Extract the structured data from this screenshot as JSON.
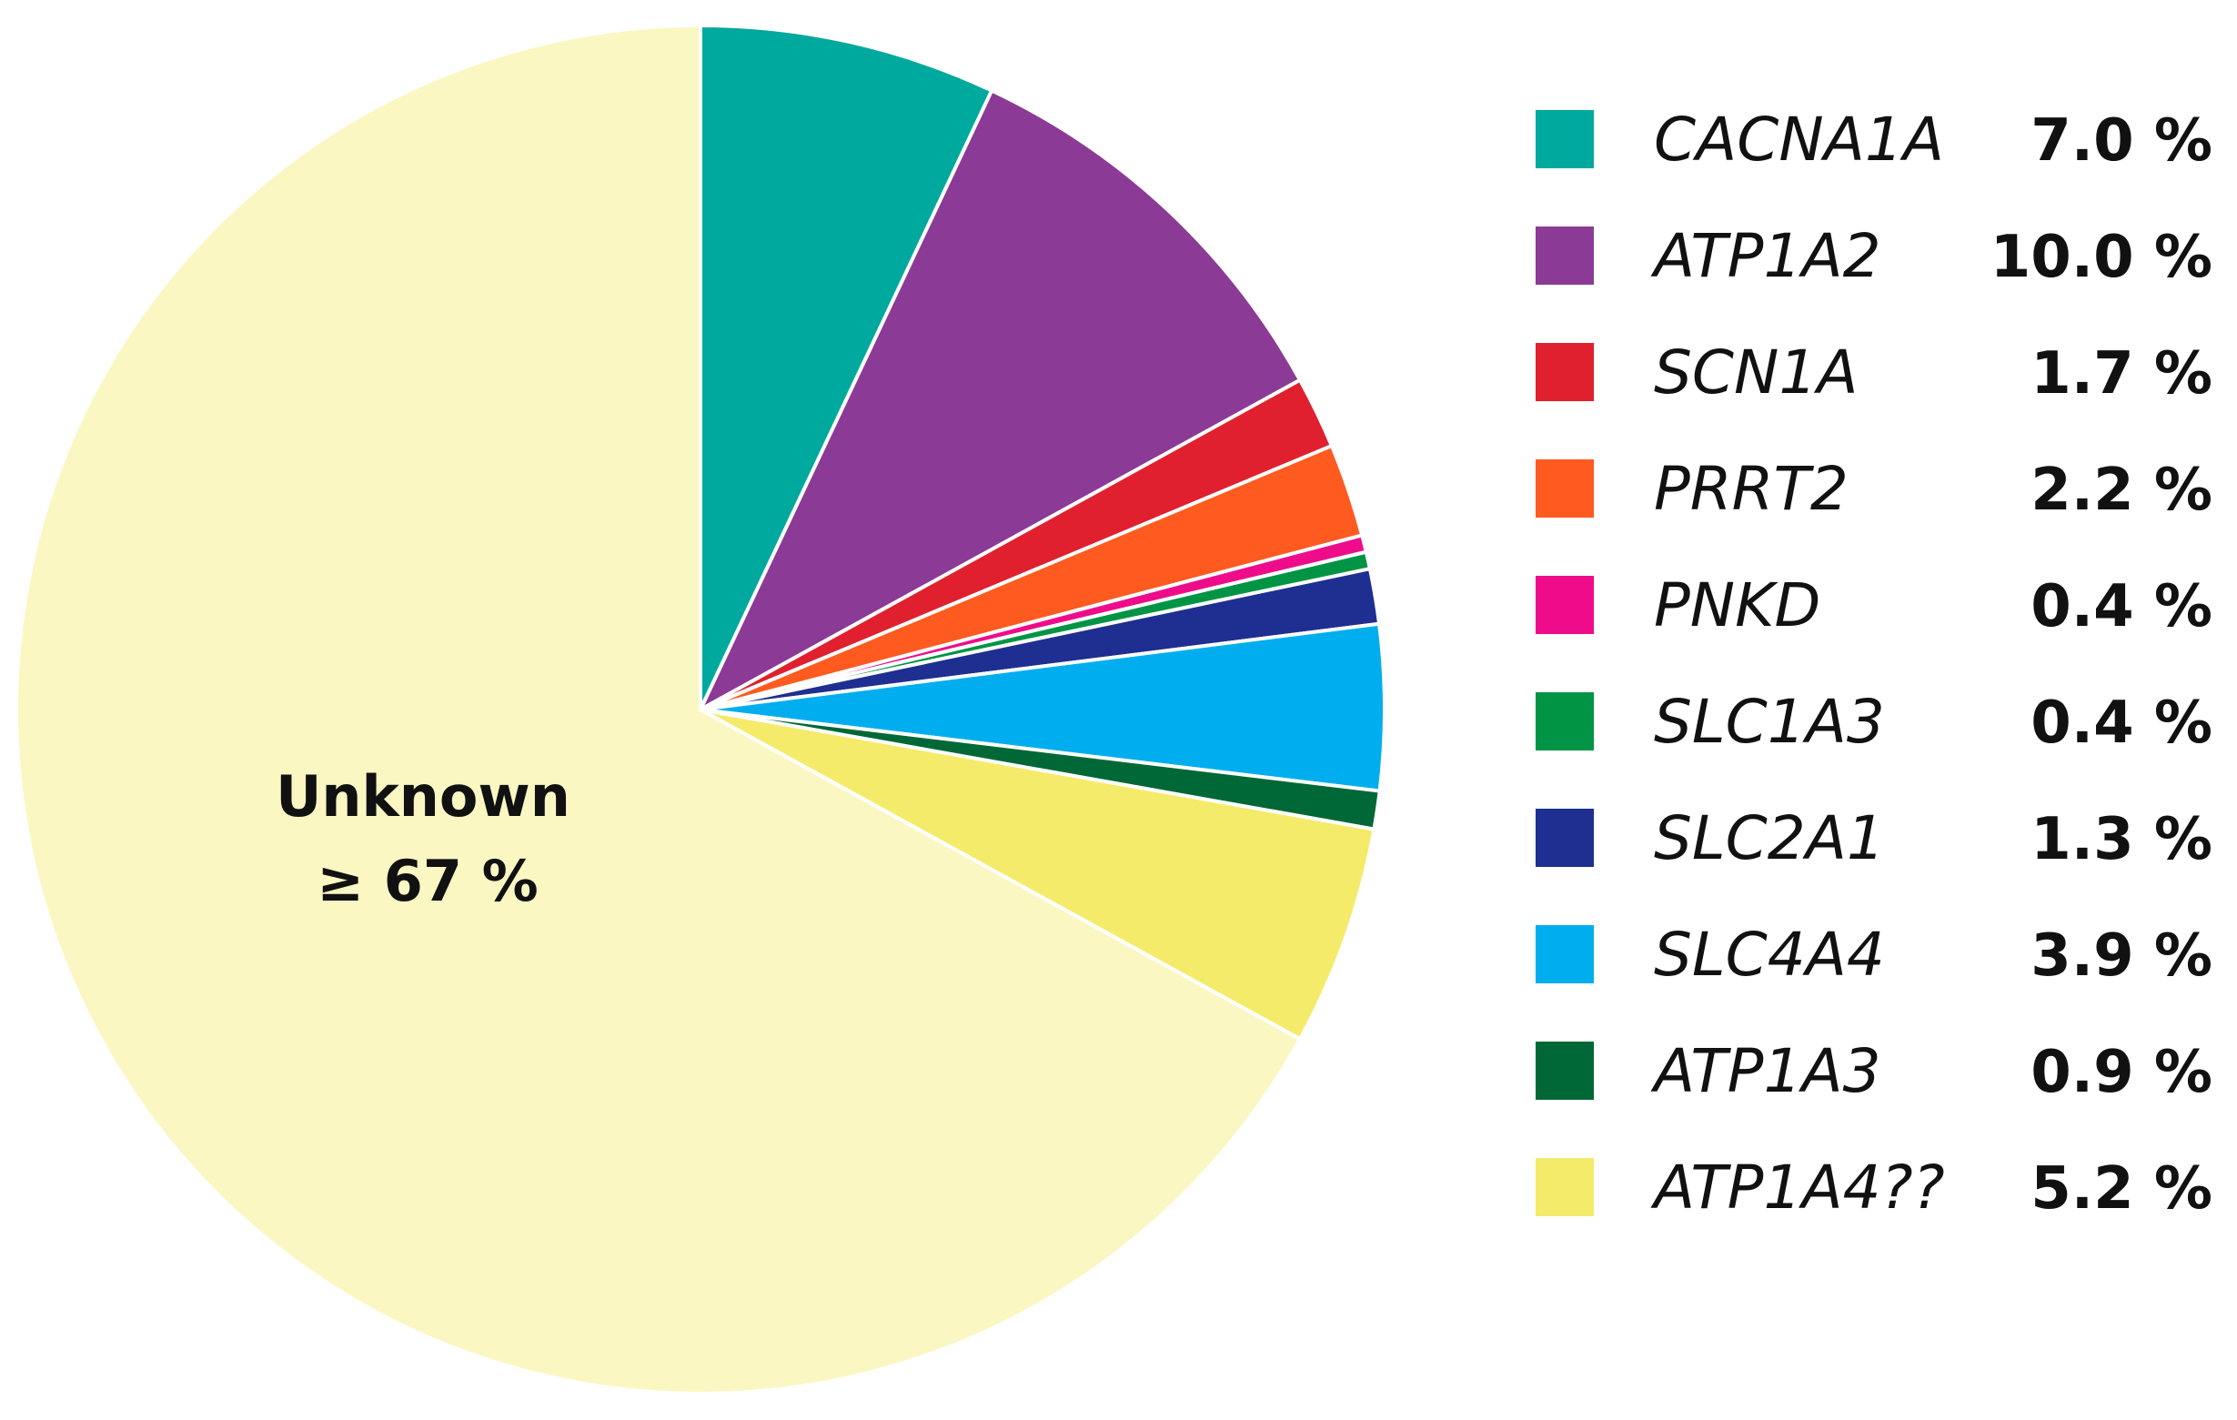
{
  "chart_data": {
    "type": "pie",
    "slices": [
      {
        "label": "CACNA1A",
        "value": 7.0,
        "value_label": "7.0 %",
        "color": "#00A99D"
      },
      {
        "label": "ATP1A2",
        "value": 10.0,
        "value_label": "10.0 %",
        "color": "#8B3A96"
      },
      {
        "label": "SCN1A",
        "value": 1.7,
        "value_label": "1.7 %",
        "color": "#E0202E"
      },
      {
        "label": "PRRT2",
        "value": 2.2,
        "value_label": "2.2 %",
        "color": "#FF5A1F"
      },
      {
        "label": "PNKD",
        "value": 0.4,
        "value_label": "0.4 %",
        "color": "#EE0C8A"
      },
      {
        "label": "SLC1A3",
        "value": 0.4,
        "value_label": "0.4 %",
        "color": "#009444"
      },
      {
        "label": "SLC2A1",
        "value": 1.3,
        "value_label": "1.3 %",
        "color": "#1E2F91"
      },
      {
        "label": "SLC4A4",
        "value": 3.9,
        "value_label": "3.9 %",
        "color": "#00AEEF"
      },
      {
        "label": "ATP1A3",
        "value": 0.9,
        "value_label": "0.9 %",
        "color": "#006837"
      },
      {
        "label": "ATP1A4??",
        "value": 5.2,
        "value_label": "5.2 %",
        "color": "#F5EB6A"
      },
      {
        "label": "Unknown",
        "value": 67.0,
        "value_label": "≥ 67 %",
        "color": "#FAF7C3"
      }
    ],
    "legend_position": "right",
    "center_label": {
      "line1": "Unknown",
      "line2": "≥ 67 %"
    }
  }
}
